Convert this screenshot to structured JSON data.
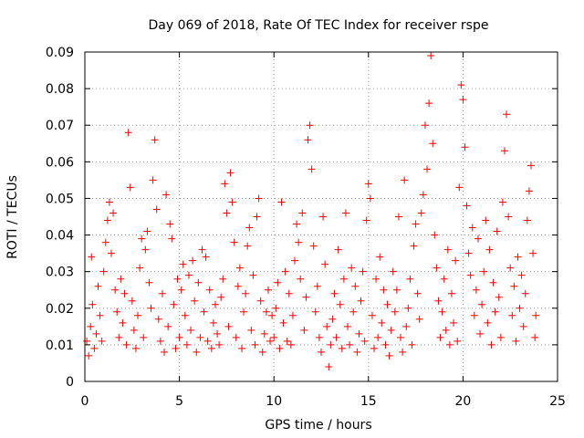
{
  "chart_data": {
    "type": "scatter",
    "title": "Day 069 of 2018, Rate Of TEC Index for receiver rspe",
    "xlabel": "GPS time / hours",
    "ylabel": "ROTI / TECUs",
    "xlim": [
      0,
      25
    ],
    "ylim": [
      0,
      0.09
    ],
    "x_ticks": [
      "0",
      "5",
      "10",
      "15",
      "20",
      "25"
    ],
    "y_ticks": [
      "0",
      "0.01",
      "0.02",
      "0.03",
      "0.04",
      "0.05",
      "0.06",
      "0.07",
      "0.08",
      "0.09"
    ],
    "grid": true,
    "marker": "+",
    "color": "#ff0000",
    "series": [
      {
        "name": "ROTI",
        "points": [
          [
            0.1,
            0.011
          ],
          [
            0.2,
            0.007
          ],
          [
            0.3,
            0.015
          ],
          [
            0.35,
            0.034
          ],
          [
            0.4,
            0.021
          ],
          [
            0.5,
            0.009
          ],
          [
            0.6,
            0.013
          ],
          [
            0.7,
            0.026
          ],
          [
            0.8,
            0.018
          ],
          [
            0.9,
            0.011
          ],
          [
            1.0,
            0.03
          ],
          [
            1.1,
            0.038
          ],
          [
            1.2,
            0.044
          ],
          [
            1.3,
            0.049
          ],
          [
            1.4,
            0.035
          ],
          [
            1.5,
            0.046
          ],
          [
            1.6,
            0.025
          ],
          [
            1.7,
            0.019
          ],
          [
            1.8,
            0.012
          ],
          [
            1.9,
            0.028
          ],
          [
            2.0,
            0.016
          ],
          [
            2.1,
            0.024
          ],
          [
            2.2,
            0.01
          ],
          [
            2.3,
            0.068
          ],
          [
            2.4,
            0.053
          ],
          [
            2.5,
            0.022
          ],
          [
            2.6,
            0.014
          ],
          [
            2.7,
            0.009
          ],
          [
            2.8,
            0.018
          ],
          [
            2.9,
            0.031
          ],
          [
            3.0,
            0.039
          ],
          [
            3.1,
            0.012
          ],
          [
            3.2,
            0.036
          ],
          [
            3.3,
            0.041
          ],
          [
            3.4,
            0.027
          ],
          [
            3.5,
            0.02
          ],
          [
            3.6,
            0.055
          ],
          [
            3.7,
            0.066
          ],
          [
            3.8,
            0.047
          ],
          [
            3.9,
            0.017
          ],
          [
            4.0,
            0.011
          ],
          [
            4.1,
            0.024
          ],
          [
            4.2,
            0.008
          ],
          [
            4.3,
            0.051
          ],
          [
            4.4,
            0.015
          ],
          [
            4.5,
            0.043
          ],
          [
            4.6,
            0.039
          ],
          [
            4.7,
            0.021
          ],
          [
            4.8,
            0.009
          ],
          [
            4.9,
            0.028
          ],
          [
            5.0,
            0.012
          ],
          [
            5.1,
            0.025
          ],
          [
            5.2,
            0.032
          ],
          [
            5.3,
            0.018
          ],
          [
            5.4,
            0.01
          ],
          [
            5.5,
            0.029
          ],
          [
            5.6,
            0.014
          ],
          [
            5.7,
            0.033
          ],
          [
            5.8,
            0.022
          ],
          [
            5.9,
            0.008
          ],
          [
            6.0,
            0.027
          ],
          [
            6.1,
            0.012
          ],
          [
            6.2,
            0.036
          ],
          [
            6.3,
            0.019
          ],
          [
            6.4,
            0.034
          ],
          [
            6.5,
            0.011
          ],
          [
            6.6,
            0.025
          ],
          [
            6.7,
            0.009
          ],
          [
            6.8,
            0.016
          ],
          [
            6.9,
            0.021
          ],
          [
            7.0,
            0.013
          ],
          [
            7.1,
            0.01
          ],
          [
            7.2,
            0.023
          ],
          [
            7.3,
            0.028
          ],
          [
            7.4,
            0.054
          ],
          [
            7.5,
            0.046
          ],
          [
            7.6,
            0.015
          ],
          [
            7.7,
            0.057
          ],
          [
            7.8,
            0.049
          ],
          [
            7.9,
            0.038
          ],
          [
            8.0,
            0.012
          ],
          [
            8.1,
            0.026
          ],
          [
            8.2,
            0.031
          ],
          [
            8.3,
            0.009
          ],
          [
            8.4,
            0.019
          ],
          [
            8.5,
            0.024
          ],
          [
            8.6,
            0.037
          ],
          [
            8.7,
            0.042
          ],
          [
            8.8,
            0.014
          ],
          [
            8.9,
            0.029
          ],
          [
            9.0,
            0.01
          ],
          [
            9.1,
            0.045
          ],
          [
            9.2,
            0.05
          ],
          [
            9.3,
            0.022
          ],
          [
            9.4,
            0.008
          ],
          [
            9.5,
            0.013
          ],
          [
            9.6,
            0.019
          ],
          [
            9.7,
            0.025
          ],
          [
            9.8,
            0.011
          ],
          [
            9.9,
            0.018
          ],
          [
            10.0,
            0.012
          ],
          [
            10.1,
            0.02
          ],
          [
            10.2,
            0.027
          ],
          [
            10.3,
            0.009
          ],
          [
            10.4,
            0.049
          ],
          [
            10.5,
            0.016
          ],
          [
            10.6,
            0.03
          ],
          [
            10.7,
            0.011
          ],
          [
            10.8,
            0.024
          ],
          [
            10.9,
            0.01
          ],
          [
            11.0,
            0.018
          ],
          [
            11.1,
            0.033
          ],
          [
            11.2,
            0.043
          ],
          [
            11.3,
            0.038
          ],
          [
            11.4,
            0.028
          ],
          [
            11.5,
            0.046
          ],
          [
            11.6,
            0.014
          ],
          [
            11.7,
            0.023
          ],
          [
            11.8,
            0.066
          ],
          [
            11.9,
            0.07
          ],
          [
            12.0,
            0.058
          ],
          [
            12.1,
            0.037
          ],
          [
            12.2,
            0.019
          ],
          [
            12.3,
            0.026
          ],
          [
            12.4,
            0.012
          ],
          [
            12.5,
            0.008
          ],
          [
            12.6,
            0.045
          ],
          [
            12.7,
            0.032
          ],
          [
            12.8,
            0.015
          ],
          [
            12.9,
            0.004
          ],
          [
            13.0,
            0.01
          ],
          [
            13.1,
            0.017
          ],
          [
            13.2,
            0.024
          ],
          [
            13.3,
            0.012
          ],
          [
            13.4,
            0.036
          ],
          [
            13.5,
            0.021
          ],
          [
            13.6,
            0.009
          ],
          [
            13.7,
            0.028
          ],
          [
            13.8,
            0.046
          ],
          [
            13.9,
            0.015
          ],
          [
            14.0,
            0.01
          ],
          [
            14.1,
            0.031
          ],
          [
            14.2,
            0.019
          ],
          [
            14.3,
            0.026
          ],
          [
            14.4,
            0.008
          ],
          [
            14.5,
            0.013
          ],
          [
            14.6,
            0.022
          ],
          [
            14.7,
            0.03
          ],
          [
            14.8,
            0.011
          ],
          [
            14.9,
            0.044
          ],
          [
            15.0,
            0.054
          ],
          [
            15.1,
            0.05
          ],
          [
            15.2,
            0.018
          ],
          [
            15.3,
            0.009
          ],
          [
            15.4,
            0.028
          ],
          [
            15.5,
            0.012
          ],
          [
            15.6,
            0.034
          ],
          [
            15.7,
            0.016
          ],
          [
            15.8,
            0.025
          ],
          [
            15.9,
            0.01
          ],
          [
            16.0,
            0.021
          ],
          [
            16.1,
            0.007
          ],
          [
            16.2,
            0.014
          ],
          [
            16.3,
            0.03
          ],
          [
            16.4,
            0.019
          ],
          [
            16.5,
            0.025
          ],
          [
            16.6,
            0.045
          ],
          [
            16.7,
            0.012
          ],
          [
            16.8,
            0.008
          ],
          [
            16.9,
            0.055
          ],
          [
            17.0,
            0.015
          ],
          [
            17.1,
            0.02
          ],
          [
            17.2,
            0.028
          ],
          [
            17.3,
            0.01
          ],
          [
            17.4,
            0.037
          ],
          [
            17.5,
            0.043
          ],
          [
            17.6,
            0.024
          ],
          [
            17.7,
            0.017
          ],
          [
            17.8,
            0.046
          ],
          [
            17.9,
            0.051
          ],
          [
            18.0,
            0.07
          ],
          [
            18.1,
            0.058
          ],
          [
            18.2,
            0.076
          ],
          [
            18.3,
            0.089
          ],
          [
            18.4,
            0.065
          ],
          [
            18.5,
            0.04
          ],
          [
            18.6,
            0.031
          ],
          [
            18.7,
            0.022
          ],
          [
            18.8,
            0.012
          ],
          [
            18.9,
            0.019
          ],
          [
            19.0,
            0.028
          ],
          [
            19.1,
            0.014
          ],
          [
            19.2,
            0.036
          ],
          [
            19.3,
            0.01
          ],
          [
            19.4,
            0.024
          ],
          [
            19.5,
            0.016
          ],
          [
            19.6,
            0.033
          ],
          [
            19.7,
            0.011
          ],
          [
            19.8,
            0.053
          ],
          [
            19.9,
            0.081
          ],
          [
            20.0,
            0.077
          ],
          [
            20.1,
            0.064
          ],
          [
            20.2,
            0.048
          ],
          [
            20.3,
            0.035
          ],
          [
            20.4,
            0.029
          ],
          [
            20.5,
            0.042
          ],
          [
            20.6,
            0.018
          ],
          [
            20.7,
            0.025
          ],
          [
            20.8,
            0.039
          ],
          [
            20.9,
            0.013
          ],
          [
            21.0,
            0.021
          ],
          [
            21.1,
            0.03
          ],
          [
            21.2,
            0.044
          ],
          [
            21.3,
            0.016
          ],
          [
            21.4,
            0.036
          ],
          [
            21.5,
            0.01
          ],
          [
            21.6,
            0.027
          ],
          [
            21.7,
            0.019
          ],
          [
            21.8,
            0.041
          ],
          [
            21.9,
            0.023
          ],
          [
            22.0,
            0.012
          ],
          [
            22.1,
            0.049
          ],
          [
            22.2,
            0.063
          ],
          [
            22.3,
            0.073
          ],
          [
            22.4,
            0.045
          ],
          [
            22.5,
            0.031
          ],
          [
            22.6,
            0.018
          ],
          [
            22.7,
            0.026
          ],
          [
            22.8,
            0.011
          ],
          [
            22.9,
            0.034
          ],
          [
            23.0,
            0.02
          ],
          [
            23.1,
            0.029
          ],
          [
            23.2,
            0.015
          ],
          [
            23.3,
            0.024
          ],
          [
            23.4,
            0.044
          ],
          [
            23.5,
            0.052
          ],
          [
            23.6,
            0.059
          ],
          [
            23.7,
            0.035
          ],
          [
            23.8,
            0.012
          ],
          [
            23.85,
            0.018
          ]
        ]
      }
    ]
  }
}
